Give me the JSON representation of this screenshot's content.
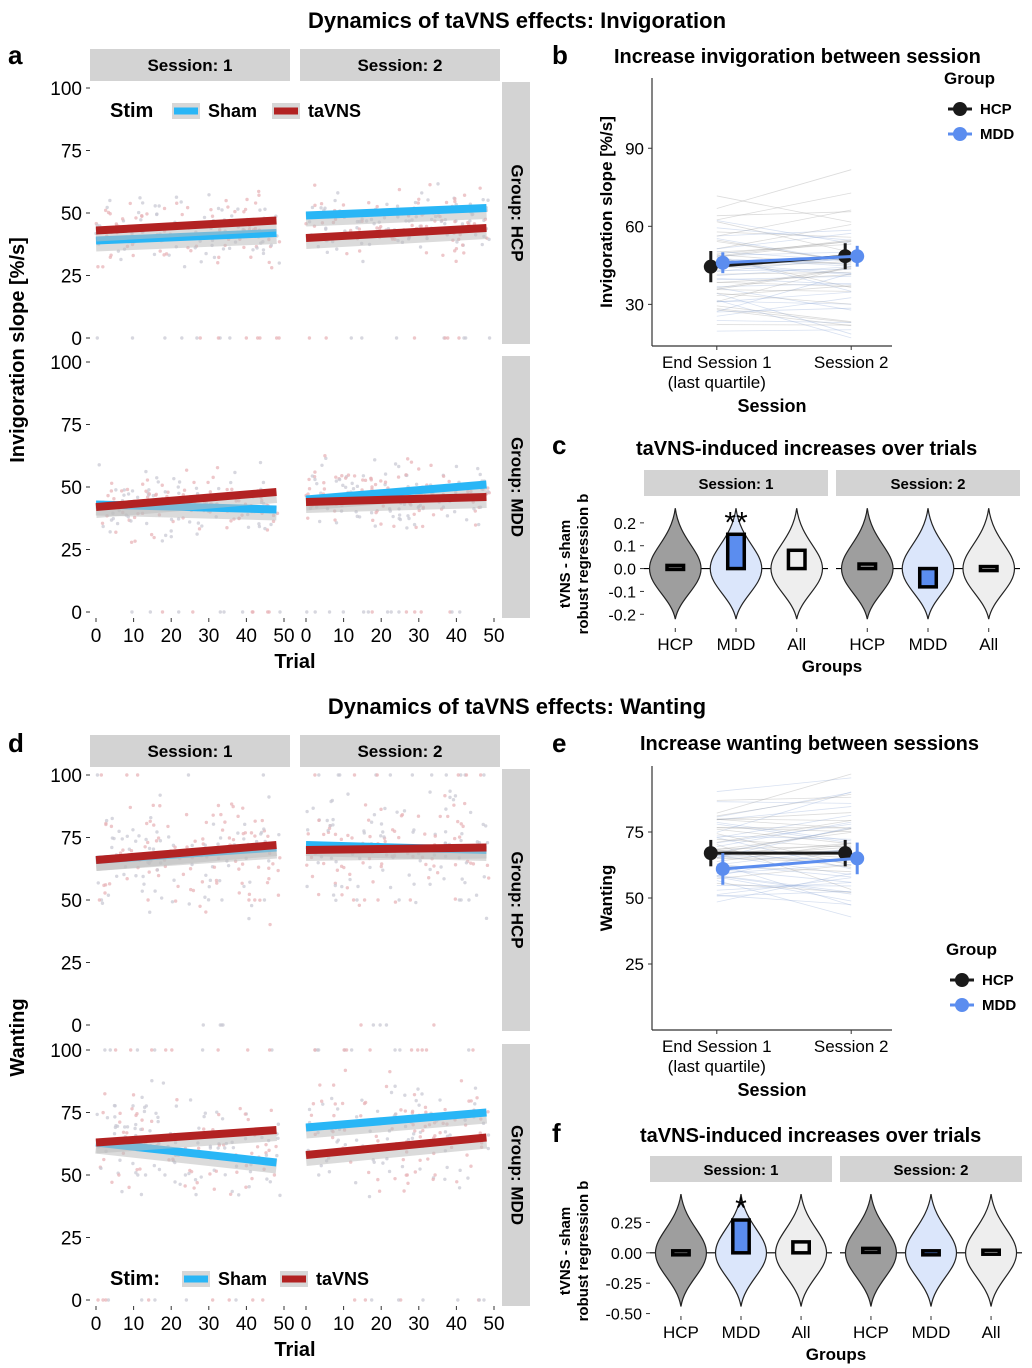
{
  "titles": {
    "top": "Dynamics of taVNS effects: Invigoration",
    "bottom": "Dynamics of taVNS effects: Wanting"
  },
  "panel_letters": [
    "a",
    "b",
    "c",
    "d",
    "e",
    "f"
  ],
  "colors": {
    "sham": "#29b6f6",
    "tavns": "#b22222",
    "hcp": "#1a1a1a",
    "mdd": "#5b8def",
    "strip": "#d3d3d3",
    "ribbon": "#bdbdbd",
    "violin_hcp": "#9e9e9e",
    "violin_mdd": "#dbe6fb",
    "violin_all": "#eeeeee"
  },
  "chart_data": [
    {
      "id": "a",
      "type": "scatter",
      "ylabel": "Invigoration slope [%/s]",
      "xlabel": "Trial",
      "xlim": [
        0,
        50
      ],
      "ylim": [
        0,
        100
      ],
      "xticks": [
        "0",
        "10",
        "20",
        "30",
        "40",
        "50"
      ],
      "yticks": [
        "0",
        "25",
        "50",
        "75",
        "100"
      ],
      "facets_col": [
        "Session: 1",
        "Session: 2"
      ],
      "facets_row": [
        "Group: HCP",
        "Group: MDD"
      ],
      "legend": {
        "title": "Stim",
        "items": [
          "Sham",
          "taVNS"
        ]
      },
      "series": [
        {
          "name": "Sham",
          "row": 0,
          "col": 0,
          "x": [
            0,
            48
          ],
          "y": [
            39,
            42
          ]
        },
        {
          "name": "taVNS",
          "row": 0,
          "col": 0,
          "x": [
            0,
            48
          ],
          "y": [
            43,
            47
          ]
        },
        {
          "name": "Sham",
          "row": 0,
          "col": 1,
          "x": [
            0,
            48
          ],
          "y": [
            49,
            52
          ]
        },
        {
          "name": "taVNS",
          "row": 0,
          "col": 1,
          "x": [
            0,
            48
          ],
          "y": [
            40,
            44
          ]
        },
        {
          "name": "Sham",
          "row": 1,
          "col": 0,
          "x": [
            0,
            48
          ],
          "y": [
            43,
            41
          ]
        },
        {
          "name": "taVNS",
          "row": 1,
          "col": 0,
          "x": [
            0,
            48
          ],
          "y": [
            42,
            48
          ]
        },
        {
          "name": "Sham",
          "row": 1,
          "col": 1,
          "x": [
            0,
            48
          ],
          "y": [
            45,
            51
          ]
        },
        {
          "name": "taVNS",
          "row": 1,
          "col": 1,
          "x": [
            0,
            48
          ],
          "y": [
            44,
            46
          ]
        }
      ]
    },
    {
      "id": "b",
      "type": "line",
      "title": "Increase invigoration between session",
      "ylabel": "Invigoration slope [%/s]",
      "xlabel": "Session",
      "categories": [
        "End Session 1\n(last quartile)",
        "Session 2"
      ],
      "ylim": [
        14,
        117
      ],
      "yticks": [
        "30",
        "60",
        "90"
      ],
      "legend": {
        "title": "Group",
        "items": [
          "HCP",
          "MDD"
        ]
      },
      "series": [
        {
          "name": "HCP",
          "values": [
            44.5,
            48.5
          ],
          "err": [
            6,
            5
          ]
        },
        {
          "name": "MDD",
          "values": [
            46,
            48.5
          ],
          "err": [
            4,
            4
          ]
        }
      ]
    },
    {
      "id": "c",
      "type": "bar",
      "title": "taVNS-induced increases over trials",
      "ylabel": "tVNS - sham\nrobust regression b",
      "xlabel": "Groups",
      "categories": [
        "HCP",
        "MDD",
        "All"
      ],
      "facets_col": [
        "Session: 1",
        "Session: 2"
      ],
      "ylim": [
        -0.26,
        0.3
      ],
      "yticks": [
        "-0.2",
        "-0.1",
        "0.0",
        "0.1",
        "0.2"
      ],
      "series": [
        {
          "name": "Session: 1",
          "values": [
            0.005,
            0.15,
            0.08
          ]
        },
        {
          "name": "Session: 2",
          "values": [
            0.02,
            -0.08,
            -0.012
          ]
        }
      ],
      "annotations": [
        {
          "facet": 0,
          "category": "MDD",
          "text": "**"
        }
      ]
    },
    {
      "id": "d",
      "type": "scatter",
      "ylabel": "Wanting",
      "xlabel": "Trial",
      "xlim": [
        0,
        50
      ],
      "ylim": [
        0,
        100
      ],
      "xticks": [
        "0",
        "10",
        "20",
        "30",
        "40",
        "50"
      ],
      "yticks": [
        "0",
        "25",
        "50",
        "75",
        "100"
      ],
      "facets_col": [
        "Session: 1",
        "Session: 2"
      ],
      "facets_row": [
        "Group: HCP",
        "Group: MDD"
      ],
      "legend": {
        "title": "Stim:",
        "items": [
          "Sham",
          "taVNS"
        ]
      },
      "series": [
        {
          "name": "Sham",
          "row": 0,
          "col": 0,
          "x": [
            0,
            48
          ],
          "y": [
            66,
            71
          ]
        },
        {
          "name": "taVNS",
          "row": 0,
          "col": 0,
          "x": [
            0,
            48
          ],
          "y": [
            66,
            72
          ]
        },
        {
          "name": "Sham",
          "row": 0,
          "col": 1,
          "x": [
            0,
            48
          ],
          "y": [
            72,
            70
          ]
        },
        {
          "name": "taVNS",
          "row": 0,
          "col": 1,
          "x": [
            0,
            48
          ],
          "y": [
            70,
            71
          ]
        },
        {
          "name": "Sham",
          "row": 1,
          "col": 0,
          "x": [
            0,
            48
          ],
          "y": [
            63,
            55
          ]
        },
        {
          "name": "taVNS",
          "row": 1,
          "col": 0,
          "x": [
            0,
            48
          ],
          "y": [
            63,
            68
          ]
        },
        {
          "name": "Sham",
          "row": 1,
          "col": 1,
          "x": [
            0,
            48
          ],
          "y": [
            69,
            75
          ]
        },
        {
          "name": "taVNS",
          "row": 1,
          "col": 1,
          "x": [
            0,
            48
          ],
          "y": [
            58,
            65
          ]
        }
      ]
    },
    {
      "id": "e",
      "type": "line",
      "title": "Increase wanting between sessions",
      "ylabel": "Wanting",
      "xlabel": "Session",
      "categories": [
        "End Session 1\n(last quartile)",
        "Session 2"
      ],
      "ylim": [
        0,
        100
      ],
      "yticks": [
        "25",
        "50",
        "75"
      ],
      "legend": {
        "title": "Group",
        "items": [
          "HCP",
          "MDD"
        ]
      },
      "series": [
        {
          "name": "HCP",
          "values": [
            67,
            67
          ],
          "err": [
            5,
            5
          ]
        },
        {
          "name": "MDD",
          "values": [
            61,
            65
          ],
          "err": [
            6,
            6
          ]
        }
      ]
    },
    {
      "id": "f",
      "type": "bar",
      "title": "taVNS-induced increases over trials",
      "ylabel": "tVNS - sham\nrobust regression b",
      "xlabel": "Groups",
      "categories": [
        "HCP",
        "MDD",
        "All"
      ],
      "facets_col": [
        "Session: 1",
        "Session: 2"
      ],
      "ylim": [
        -0.52,
        0.55
      ],
      "yticks": [
        "-0.50",
        "-0.25",
        "0.00",
        "0.25"
      ],
      "series": [
        {
          "name": "Session: 1",
          "values": [
            0.0,
            0.27,
            0.09
          ]
        },
        {
          "name": "Session: 2",
          "values": [
            0.02,
            0.0,
            0.005
          ]
        }
      ],
      "annotations": [
        {
          "facet": 0,
          "category": "MDD",
          "text": "*"
        }
      ]
    }
  ]
}
